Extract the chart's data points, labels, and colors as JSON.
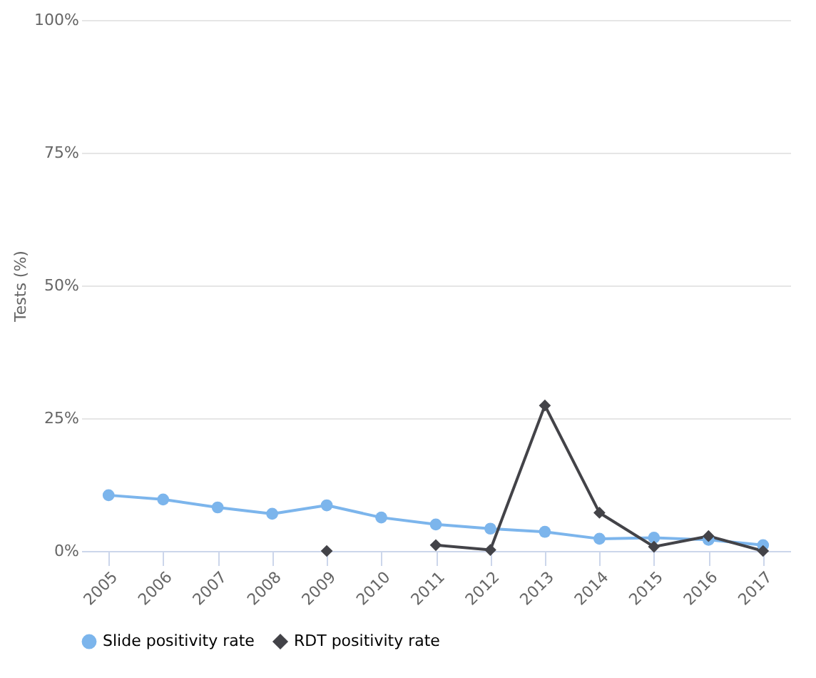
{
  "chart_data": {
    "type": "line",
    "ylabel": "Tests (%)",
    "categories": [
      "2005",
      "2006",
      "2007",
      "2008",
      "2009",
      "2010",
      "2011",
      "2012",
      "2013",
      "2014",
      "2015",
      "2016",
      "2017"
    ],
    "series": [
      {
        "name": "Slide positivity rate",
        "color": "#7cb5ec",
        "marker": "circle",
        "values": [
          10.5,
          9.7,
          8.2,
          7.0,
          8.6,
          6.3,
          5.0,
          4.2,
          3.6,
          2.3,
          2.5,
          2.1,
          1.1
        ]
      },
      {
        "name": "RDT positivity rate",
        "color": "#434348",
        "marker": "diamond",
        "values": [
          null,
          null,
          null,
          null,
          0,
          null,
          1.1,
          0.2,
          27.4,
          7.2,
          0.8,
          2.8,
          0
        ]
      }
    ],
    "ylim": [
      0,
      100
    ],
    "yticks": [
      {
        "value": 0,
        "label": "0%"
      },
      {
        "value": 25,
        "label": "25%"
      },
      {
        "value": 50,
        "label": "50%"
      },
      {
        "value": 75,
        "label": "75%"
      },
      {
        "value": 100,
        "label": "100%"
      }
    ],
    "grid": "y",
    "legend": "bottom",
    "line_style": "solid"
  }
}
